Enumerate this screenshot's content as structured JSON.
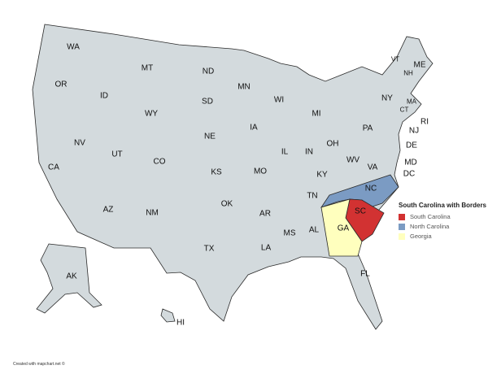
{
  "map": {
    "base_color": "#d3dadd",
    "border_color": "#2a2a2a",
    "state_labels": [
      "WA",
      "OR",
      "CA",
      "ID",
      "NV",
      "MT",
      "WY",
      "UT",
      "AZ",
      "CO",
      "NM",
      "ND",
      "SD",
      "NE",
      "KS",
      "OK",
      "TX",
      "MN",
      "IA",
      "MO",
      "AR",
      "LA",
      "WI",
      "IL",
      "MS",
      "MI",
      "IN",
      "KY",
      "TN",
      "AL",
      "OH",
      "WV",
      "PA",
      "NY",
      "VA",
      "NC",
      "SC",
      "GA",
      "FL",
      "VT",
      "NH",
      "ME",
      "MA",
      "CT",
      "RI",
      "NJ",
      "DE",
      "MD",
      "DC",
      "AK",
      "HI"
    ]
  },
  "highlighted": [
    {
      "state": "SC",
      "color": "#d23232"
    },
    {
      "state": "NC",
      "color": "#7b9bc3"
    },
    {
      "state": "GA",
      "color": "#ffffbe"
    }
  ],
  "legend": {
    "title": "South Carolina with Borders",
    "items": [
      {
        "label": "South Carolina",
        "color": "#d23232"
      },
      {
        "label": "North Carolina",
        "color": "#7b9bc3"
      },
      {
        "label": "Georgia",
        "color": "#ffffbe"
      }
    ]
  },
  "credit": "Created with mapchart.net ©"
}
